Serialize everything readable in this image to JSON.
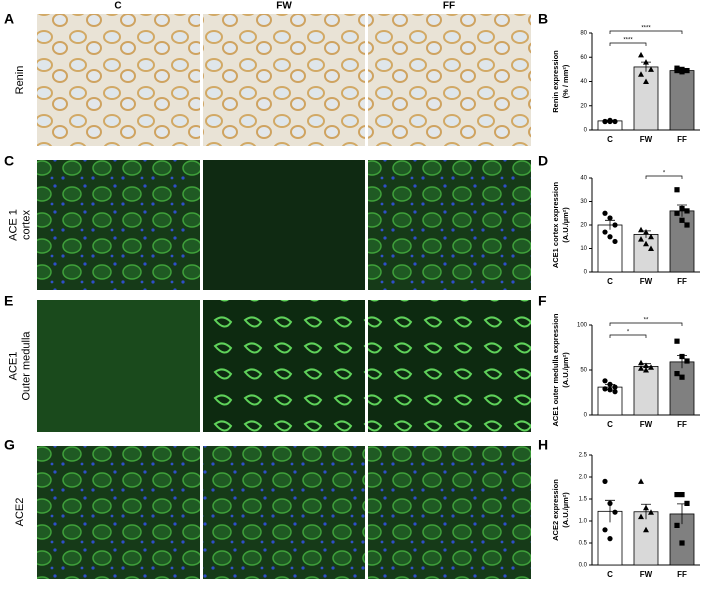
{
  "columns": [
    "C",
    "FW",
    "FF"
  ],
  "rows": [
    {
      "letter": "A",
      "label": [
        "Renin"
      ]
    },
    {
      "letter": "C",
      "label": [
        "ACE 1",
        "cortex"
      ]
    },
    {
      "letter": "E",
      "label": [
        "ACE1",
        "Outer medulla"
      ]
    },
    {
      "letter": "G",
      "label": [
        "ACE2"
      ]
    }
  ],
  "chart_data": [
    {
      "type": "bar",
      "panel": "B",
      "ylabel": [
        "Renin expression",
        "(% / mm²)"
      ],
      "categories": [
        "C",
        "FW",
        "FF"
      ],
      "colors": [
        "#ffffff",
        "#d9d9d9",
        "#808080"
      ],
      "values": [
        7.5,
        52,
        49
      ],
      "errors": [
        0.5,
        4,
        1
      ],
      "points": [
        [
          7,
          7,
          7,
          7,
          8
        ],
        [
          62,
          56,
          50,
          46,
          40
        ],
        [
          51,
          50,
          49,
          49,
          48
        ]
      ],
      "ylim": [
        0,
        80
      ],
      "yticks": [
        0,
        20,
        40,
        60,
        80
      ],
      "annotations": [
        {
          "text": "****",
          "between": [
            "C",
            "FF"
          ]
        },
        {
          "text": "****",
          "between": [
            "C",
            "FW"
          ]
        }
      ]
    },
    {
      "type": "bar",
      "panel": "D",
      "ylabel": [
        "ACE1 cortex expression",
        "(A.U./µm²)"
      ],
      "categories": [
        "C",
        "FW",
        "FF"
      ],
      "colors": [
        "#ffffff",
        "#d9d9d9",
        "#808080"
      ],
      "values": [
        20,
        16,
        26
      ],
      "errors": [
        2,
        1.5,
        2.5
      ],
      "points": [
        [
          25,
          23,
          20,
          17,
          15,
          13
        ],
        [
          18,
          17,
          15,
          14,
          12,
          10
        ],
        [
          35,
          27,
          26,
          25,
          22,
          20
        ]
      ],
      "ylim": [
        0,
        40
      ],
      "yticks": [
        0,
        10,
        20,
        30,
        40
      ],
      "annotations": [
        {
          "text": "*",
          "between": [
            "FW",
            "FF"
          ]
        }
      ]
    },
    {
      "type": "bar",
      "panel": "F",
      "ylabel": [
        "ACE1 outer medulla expression",
        "(A.U./µm²)"
      ],
      "categories": [
        "C",
        "FW",
        "FF"
      ],
      "colors": [
        "#ffffff",
        "#d9d9d9",
        "#808080"
      ],
      "values": [
        31,
        54,
        59
      ],
      "errors": [
        3,
        3,
        7
      ],
      "points": [
        [
          38,
          34,
          31,
          29,
          28,
          26
        ],
        [
          58,
          55,
          53,
          52,
          50
        ],
        [
          82,
          65,
          60,
          46,
          42
        ]
      ],
      "ylim": [
        0,
        100
      ],
      "yticks": [
        0,
        50,
        100
      ],
      "annotations": [
        {
          "text": "**",
          "between": [
            "C",
            "FF"
          ]
        },
        {
          "text": "*",
          "between": [
            "C",
            "FW"
          ]
        }
      ]
    },
    {
      "type": "bar",
      "panel": "H",
      "ylabel": [
        "ACE2 expression",
        "(A.U./µm²)"
      ],
      "categories": [
        "C",
        "FW",
        "FF"
      ],
      "colors": [
        "#ffffff",
        "#d9d9d9",
        "#808080"
      ],
      "values": [
        1.22,
        1.21,
        1.16
      ],
      "errors": [
        0.25,
        0.17,
        0.23
      ],
      "points": [
        [
          1.9,
          1.4,
          1.2,
          0.8,
          0.6
        ],
        [
          1.9,
          1.3,
          1.2,
          1.1,
          0.8
        ],
        [
          1.6,
          1.6,
          1.4,
          0.9,
          0.5
        ]
      ],
      "ylim": [
        0,
        2.5
      ],
      "yticks": [
        {
          "value": 0,
          "label": "0.0"
        },
        0.5,
        {
          "value": 1,
          "label": "1.0"
        },
        1.5,
        {
          "value": 2,
          "label": "2.0"
        },
        2.5
      ],
      "annotations": []
    }
  ]
}
